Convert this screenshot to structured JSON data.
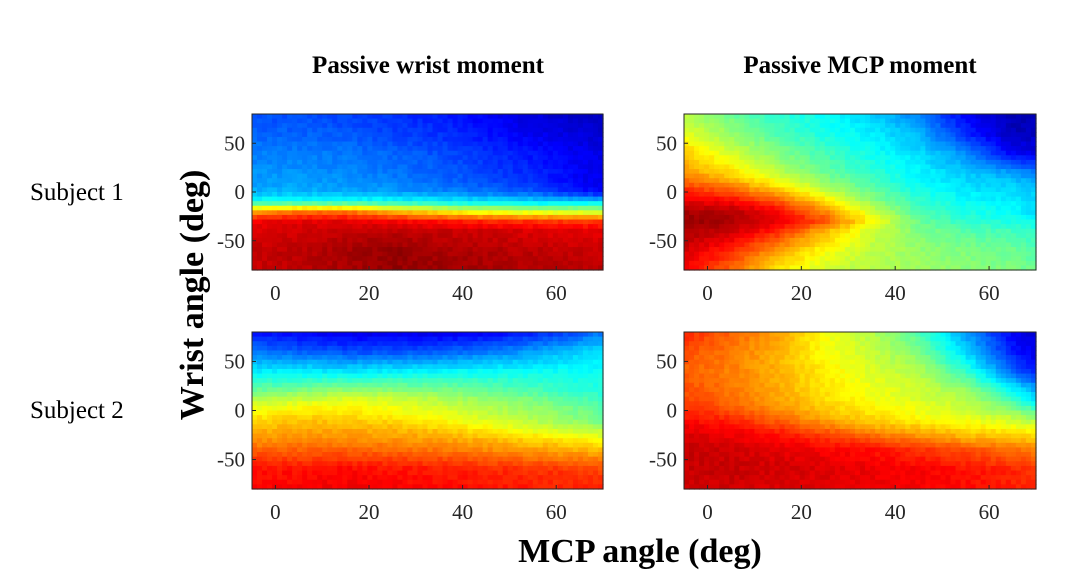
{
  "figure": {
    "ylabel": "Wrist angle (deg)",
    "xlabel": "MCP angle (deg)",
    "column_titles": [
      "Passive wrist moment",
      "Passive MCP moment"
    ],
    "row_labels": [
      "Subject 1",
      "Subject 2"
    ]
  },
  "colormap": {
    "name": "jet",
    "stops": [
      "#00007f",
      "#0000ff",
      "#007fff",
      "#00ffff",
      "#7fff7f",
      "#ffff00",
      "#ff7f00",
      "#ff0000",
      "#7f0000"
    ]
  },
  "chart_data": [
    {
      "type": "heatmap",
      "title": "Passive wrist moment",
      "row_label": "Subject 1",
      "x": [
        -5,
        5,
        15,
        25,
        35,
        45,
        55,
        65,
        70
      ],
      "y": [
        80,
        60,
        40,
        20,
        10,
        0,
        -10,
        -20,
        -30,
        -40,
        -60,
        -80
      ],
      "z": [
        [
          0.2,
          0.2,
          0.19,
          0.17,
          0.15,
          0.12,
          0.09,
          0.07,
          0.06
        ],
        [
          0.22,
          0.22,
          0.21,
          0.19,
          0.17,
          0.14,
          0.11,
          0.09,
          0.08
        ],
        [
          0.25,
          0.25,
          0.24,
          0.22,
          0.2,
          0.17,
          0.14,
          0.11,
          0.1
        ],
        [
          0.27,
          0.27,
          0.26,
          0.24,
          0.22,
          0.19,
          0.16,
          0.12,
          0.11
        ],
        [
          0.28,
          0.28,
          0.27,
          0.25,
          0.23,
          0.2,
          0.17,
          0.12,
          0.1
        ],
        [
          0.3,
          0.3,
          0.29,
          0.28,
          0.26,
          0.24,
          0.21,
          0.15,
          0.12
        ],
        [
          0.4,
          0.4,
          0.4,
          0.39,
          0.37,
          0.35,
          0.34,
          0.34,
          0.34
        ],
        [
          0.72,
          0.76,
          0.76,
          0.7,
          0.64,
          0.6,
          0.58,
          0.57,
          0.57
        ],
        [
          0.88,
          0.9,
          0.9,
          0.88,
          0.86,
          0.84,
          0.83,
          0.82,
          0.82
        ],
        [
          0.91,
          0.92,
          0.93,
          0.94,
          0.93,
          0.92,
          0.91,
          0.9,
          0.9
        ],
        [
          0.93,
          0.94,
          0.96,
          0.98,
          0.96,
          0.95,
          0.94,
          0.93,
          0.93
        ],
        [
          0.93,
          0.94,
          0.96,
          0.98,
          0.97,
          0.96,
          0.95,
          0.94,
          0.94
        ]
      ],
      "xticks": [
        0,
        20,
        40,
        60
      ],
      "yticks": [
        50,
        0,
        -50
      ],
      "xlim": [
        -5,
        70
      ],
      "ylim": [
        -80,
        80
      ]
    },
    {
      "type": "heatmap",
      "title": "Passive MCP moment",
      "row_label": "Subject 1",
      "x": [
        -5,
        5,
        15,
        25,
        35,
        45,
        55,
        65,
        70
      ],
      "y": [
        80,
        60,
        40,
        20,
        10,
        0,
        -10,
        -20,
        -30,
        -40,
        -60,
        -80
      ],
      "z": [
        [
          0.55,
          0.48,
          0.42,
          0.38,
          0.33,
          0.25,
          0.12,
          0.05,
          0.05
        ],
        [
          0.6,
          0.52,
          0.45,
          0.4,
          0.36,
          0.3,
          0.16,
          0.06,
          0.06
        ],
        [
          0.68,
          0.58,
          0.5,
          0.44,
          0.39,
          0.34,
          0.26,
          0.12,
          0.1
        ],
        [
          0.72,
          0.66,
          0.56,
          0.48,
          0.42,
          0.37,
          0.32,
          0.28,
          0.24
        ],
        [
          0.78,
          0.72,
          0.62,
          0.52,
          0.44,
          0.38,
          0.34,
          0.32,
          0.3
        ],
        [
          0.85,
          0.8,
          0.7,
          0.58,
          0.48,
          0.4,
          0.36,
          0.34,
          0.32
        ],
        [
          0.9,
          0.88,
          0.8,
          0.66,
          0.52,
          0.43,
          0.38,
          0.36,
          0.34
        ],
        [
          0.96,
          0.95,
          0.88,
          0.74,
          0.58,
          0.45,
          0.4,
          0.38,
          0.33
        ],
        [
          0.98,
          0.96,
          0.9,
          0.8,
          0.62,
          0.48,
          0.42,
          0.4,
          0.38
        ],
        [
          0.96,
          0.93,
          0.84,
          0.7,
          0.58,
          0.5,
          0.46,
          0.44,
          0.42
        ],
        [
          0.92,
          0.84,
          0.72,
          0.62,
          0.56,
          0.52,
          0.5,
          0.48,
          0.46
        ],
        [
          0.88,
          0.78,
          0.64,
          0.58,
          0.55,
          0.53,
          0.51,
          0.5,
          0.48
        ]
      ],
      "xticks": [
        0,
        20,
        40,
        60
      ],
      "yticks": [
        50,
        0,
        -50
      ],
      "xlim": [
        -5,
        70
      ],
      "ylim": [
        -80,
        80
      ]
    },
    {
      "type": "heatmap",
      "title": "",
      "row_label": "Subject 2",
      "x": [
        -5,
        5,
        15,
        25,
        35,
        45,
        55,
        65,
        70
      ],
      "y": [
        80,
        60,
        40,
        20,
        10,
        0,
        -10,
        -20,
        -30,
        -40,
        -60,
        -80
      ],
      "z": [
        [
          0.14,
          0.12,
          0.1,
          0.1,
          0.1,
          0.12,
          0.15,
          0.2,
          0.24
        ],
        [
          0.24,
          0.22,
          0.2,
          0.2,
          0.21,
          0.24,
          0.28,
          0.33,
          0.35
        ],
        [
          0.36,
          0.36,
          0.35,
          0.36,
          0.37,
          0.38,
          0.38,
          0.38,
          0.38
        ],
        [
          0.48,
          0.5,
          0.52,
          0.52,
          0.5,
          0.48,
          0.45,
          0.42,
          0.41
        ],
        [
          0.56,
          0.58,
          0.6,
          0.59,
          0.56,
          0.53,
          0.5,
          0.46,
          0.44
        ],
        [
          0.62,
          0.64,
          0.64,
          0.62,
          0.59,
          0.56,
          0.53,
          0.49,
          0.46
        ],
        [
          0.66,
          0.68,
          0.68,
          0.66,
          0.63,
          0.59,
          0.55,
          0.51,
          0.48
        ],
        [
          0.7,
          0.71,
          0.71,
          0.7,
          0.68,
          0.64,
          0.6,
          0.57,
          0.55
        ],
        [
          0.73,
          0.74,
          0.74,
          0.73,
          0.72,
          0.7,
          0.67,
          0.64,
          0.62
        ],
        [
          0.78,
          0.78,
          0.78,
          0.77,
          0.76,
          0.74,
          0.72,
          0.7,
          0.69
        ],
        [
          0.86,
          0.86,
          0.87,
          0.86,
          0.85,
          0.84,
          0.83,
          0.82,
          0.81
        ],
        [
          0.88,
          0.88,
          0.89,
          0.88,
          0.87,
          0.86,
          0.85,
          0.84,
          0.84
        ]
      ],
      "xticks": [
        0,
        20,
        40,
        60
      ],
      "yticks": [
        50,
        0,
        -50
      ],
      "xlim": [
        -5,
        70
      ],
      "ylim": [
        -80,
        80
      ]
    },
    {
      "type": "heatmap",
      "title": "",
      "row_label": "Subject 2",
      "x": [
        -5,
        5,
        15,
        25,
        35,
        45,
        55,
        65,
        70
      ],
      "y": [
        80,
        60,
        40,
        20,
        10,
        0,
        -10,
        -20,
        -30,
        -40,
        -60,
        -80
      ],
      "z": [
        [
          0.84,
          0.78,
          0.72,
          0.62,
          0.55,
          0.45,
          0.28,
          0.12,
          0.08
        ],
        [
          0.8,
          0.76,
          0.7,
          0.62,
          0.57,
          0.5,
          0.33,
          0.15,
          0.1
        ],
        [
          0.78,
          0.75,
          0.7,
          0.64,
          0.59,
          0.55,
          0.43,
          0.22,
          0.14
        ],
        [
          0.8,
          0.76,
          0.71,
          0.65,
          0.61,
          0.58,
          0.53,
          0.38,
          0.3
        ],
        [
          0.81,
          0.77,
          0.72,
          0.66,
          0.62,
          0.59,
          0.56,
          0.45,
          0.35
        ],
        [
          0.84,
          0.8,
          0.74,
          0.68,
          0.64,
          0.61,
          0.58,
          0.52,
          0.45
        ],
        [
          0.87,
          0.84,
          0.78,
          0.72,
          0.67,
          0.63,
          0.61,
          0.58,
          0.54
        ],
        [
          0.9,
          0.88,
          0.84,
          0.78,
          0.73,
          0.7,
          0.66,
          0.64,
          0.62
        ],
        [
          0.92,
          0.9,
          0.88,
          0.84,
          0.8,
          0.76,
          0.72,
          0.7,
          0.68
        ],
        [
          0.93,
          0.92,
          0.9,
          0.88,
          0.86,
          0.83,
          0.8,
          0.77,
          0.75
        ],
        [
          0.93,
          0.93,
          0.92,
          0.91,
          0.89,
          0.88,
          0.86,
          0.84,
          0.82
        ],
        [
          0.92,
          0.92,
          0.91,
          0.9,
          0.89,
          0.88,
          0.87,
          0.85,
          0.84
        ]
      ],
      "xticks": [
        0,
        20,
        40,
        60
      ],
      "yticks": [
        50,
        0,
        -50
      ],
      "xlim": [
        -5,
        70
      ],
      "ylim": [
        -80,
        80
      ]
    }
  ]
}
